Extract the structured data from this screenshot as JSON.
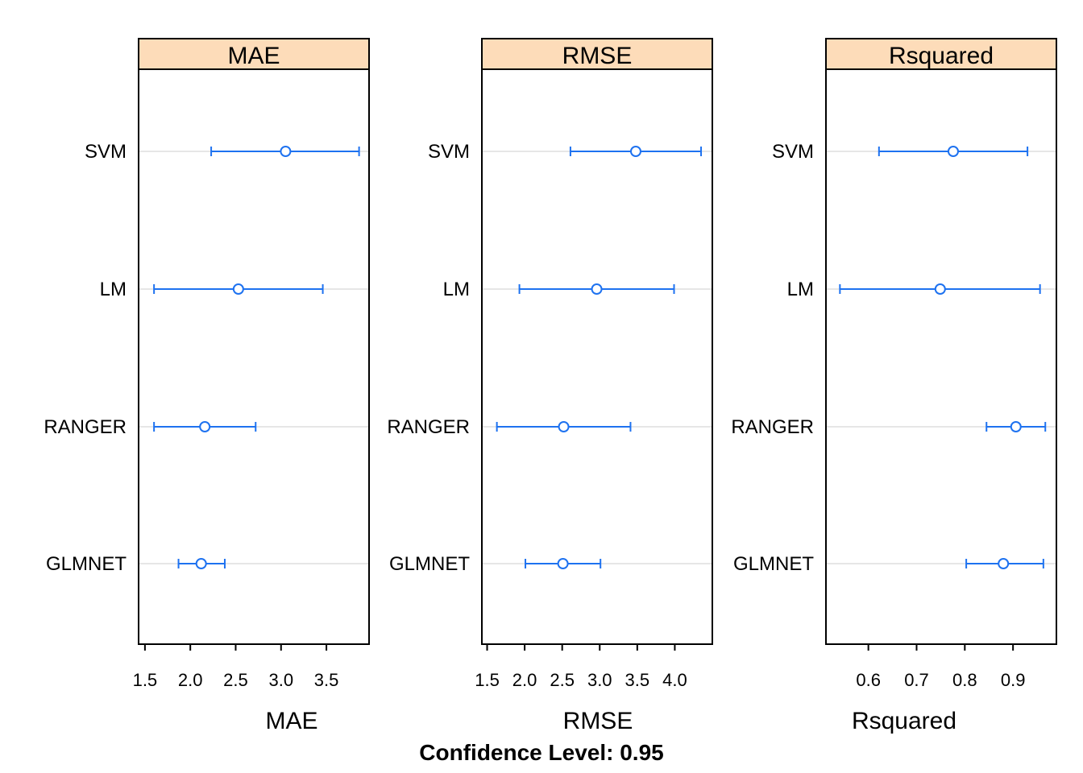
{
  "models": [
    "SVM",
    "LM",
    "RANGER",
    "GLMNET"
  ],
  "footer": "Confidence Level: 0.95",
  "colors": {
    "strip": "#FDDCB9",
    "interval": "#1E72F0",
    "gridline": "#E6E6E6",
    "frame": "#000000"
  },
  "chart_data": [
    {
      "type": "dotplot-interval",
      "title": "MAE",
      "xlabel": "MAE",
      "xlim": [
        1.43,
        3.97
      ],
      "ticks": [
        1.5,
        2.0,
        2.5,
        3.0,
        3.5
      ],
      "tick_labels": [
        "1.5",
        "2.0",
        "2.5",
        "3.0",
        "3.5"
      ],
      "series": [
        {
          "model": "SVM",
          "estimate": 3.05,
          "lower": 2.23,
          "upper": 3.86
        },
        {
          "model": "LM",
          "estimate": 2.53,
          "lower": 1.6,
          "upper": 3.46
        },
        {
          "model": "RANGER",
          "estimate": 2.16,
          "lower": 1.6,
          "upper": 2.72
        },
        {
          "model": "GLMNET",
          "estimate": 2.12,
          "lower": 1.87,
          "upper": 2.38
        }
      ]
    },
    {
      "type": "dotplot-interval",
      "title": "RMSE",
      "xlabel": "RMSE",
      "xlim": [
        1.43,
        4.5
      ],
      "ticks": [
        1.5,
        2.0,
        2.5,
        3.0,
        3.5,
        4.0
      ],
      "tick_labels": [
        "1.5",
        "2.0",
        "2.5",
        "3.0",
        "3.5",
        "4.0"
      ],
      "series": [
        {
          "model": "SVM",
          "estimate": 3.48,
          "lower": 2.61,
          "upper": 4.35
        },
        {
          "model": "LM",
          "estimate": 2.96,
          "lower": 1.93,
          "upper": 3.99
        },
        {
          "model": "RANGER",
          "estimate": 2.52,
          "lower": 1.63,
          "upper": 3.41
        },
        {
          "model": "GLMNET",
          "estimate": 2.51,
          "lower": 2.01,
          "upper": 3.01
        }
      ]
    },
    {
      "type": "dotplot-interval",
      "title": "Rsquared",
      "xlabel": "Rsquared",
      "xlim": [
        0.512,
        0.99
      ],
      "ticks": [
        0.6,
        0.7,
        0.8,
        0.9
      ],
      "tick_labels": [
        "0.6",
        "0.7",
        "0.8",
        "0.9"
      ],
      "series": [
        {
          "model": "SVM",
          "estimate": 0.776,
          "lower": 0.622,
          "upper": 0.93
        },
        {
          "model": "LM",
          "estimate": 0.749,
          "lower": 0.541,
          "upper": 0.956
        },
        {
          "model": "RANGER",
          "estimate": 0.906,
          "lower": 0.845,
          "upper": 0.967
        },
        {
          "model": "GLMNET",
          "estimate": 0.88,
          "lower": 0.803,
          "upper": 0.963
        }
      ]
    }
  ]
}
